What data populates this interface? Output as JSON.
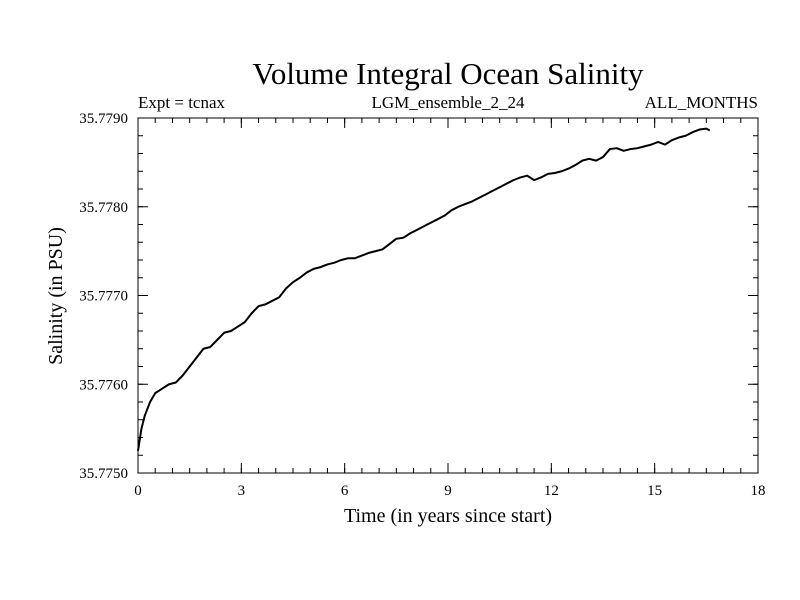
{
  "chart_data": {
    "type": "line",
    "title": "Volume Integral Ocean Salinity",
    "subtitle_left": "Expt = tcnax",
    "subtitle_center": "LGM_ensemble_2_24",
    "subtitle_right": "ALL_MONTHS",
    "xlabel": "Time (in years since start)",
    "ylabel": "Salinity (in PSU)",
    "xlim": [
      0,
      18
    ],
    "ylim": [
      35.775,
      35.779
    ],
    "x_ticks": [
      0,
      3,
      6,
      9,
      12,
      15,
      18
    ],
    "x_tick_labels": [
      "0",
      "3",
      "6",
      "9",
      "12",
      "15",
      "18"
    ],
    "y_ticks": [
      35.775,
      35.776,
      35.777,
      35.778,
      35.779
    ],
    "y_tick_labels": [
      "35.7750",
      "35.7760",
      "35.7770",
      "35.7780",
      "35.7790"
    ],
    "x_minor_step": 0.5,
    "y_minor_step": 0.0002,
    "grid": false,
    "line_color": "#000000",
    "series": [
      {
        "name": "Salinity",
        "x": [
          0.0,
          0.1,
          0.2,
          0.35,
          0.5,
          0.7,
          0.9,
          1.1,
          1.3,
          1.5,
          1.7,
          1.9,
          2.1,
          2.3,
          2.5,
          2.7,
          2.9,
          3.1,
          3.3,
          3.5,
          3.7,
          3.9,
          4.1,
          4.3,
          4.5,
          4.7,
          4.9,
          5.1,
          5.3,
          5.5,
          5.7,
          5.9,
          6.1,
          6.3,
          6.5,
          6.7,
          6.9,
          7.1,
          7.3,
          7.5,
          7.7,
          7.9,
          8.1,
          8.3,
          8.5,
          8.7,
          8.9,
          9.1,
          9.3,
          9.5,
          9.7,
          9.9,
          10.1,
          10.3,
          10.5,
          10.7,
          10.9,
          11.1,
          11.3,
          11.5,
          11.7,
          11.9,
          12.1,
          12.3,
          12.5,
          12.7,
          12.9,
          13.1,
          13.3,
          13.5,
          13.7,
          13.9,
          14.1,
          14.3,
          14.5,
          14.7,
          14.9,
          15.1,
          15.3,
          15.5,
          15.7,
          15.9,
          16.1,
          16.3,
          16.5,
          16.6
        ],
        "values": [
          35.77525,
          35.7755,
          35.77565,
          35.7758,
          35.7759,
          35.77595,
          35.776,
          35.77602,
          35.7761,
          35.7762,
          35.7763,
          35.7764,
          35.77642,
          35.7765,
          35.77658,
          35.7766,
          35.77665,
          35.7767,
          35.7768,
          35.77688,
          35.7769,
          35.77694,
          35.77698,
          35.77708,
          35.77715,
          35.7772,
          35.77726,
          35.7773,
          35.77732,
          35.77735,
          35.77737,
          35.7774,
          35.77742,
          35.77742,
          35.77745,
          35.77748,
          35.7775,
          35.77752,
          35.77758,
          35.77764,
          35.77765,
          35.7777,
          35.77774,
          35.77778,
          35.77782,
          35.77786,
          35.7779,
          35.77796,
          35.778,
          35.77803,
          35.77806,
          35.7781,
          35.77814,
          35.77818,
          35.77822,
          35.77826,
          35.7783,
          35.77833,
          35.77835,
          35.7783,
          35.77833,
          35.77837,
          35.77838,
          35.7784,
          35.77843,
          35.77847,
          35.77852,
          35.77854,
          35.77852,
          35.77856,
          35.77865,
          35.77866,
          35.77863,
          35.77865,
          35.77866,
          35.77868,
          35.7787,
          35.77873,
          35.7787,
          35.77875,
          35.77878,
          35.7788,
          35.77884,
          35.77887,
          35.77888,
          35.77886
        ]
      }
    ]
  }
}
